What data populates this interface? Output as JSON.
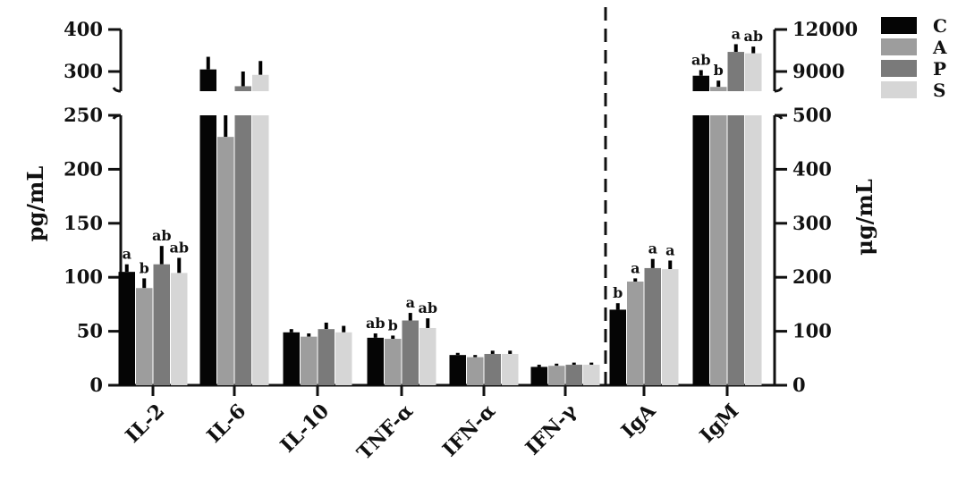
{
  "chart_data": {
    "type": "bar",
    "categories": [
      "IL-2",
      "IL-6",
      "IL-10",
      "TNF-α",
      "IFN-α",
      "IFN-γ",
      "IgA",
      "IgM"
    ],
    "series": [
      {
        "name": "C",
        "color": "#050505",
        "values": [
          105,
          305,
          49,
          44,
          28,
          17,
          140,
          8700
        ],
        "errors": [
          7,
          30,
          3,
          4,
          2,
          2,
          12,
          400
        ],
        "letters": [
          "a",
          "",
          "",
          "ab",
          "",
          "",
          "b",
          "ab"
        ]
      },
      {
        "name": "A",
        "color": "#9d9d9d",
        "values": [
          90,
          230,
          45,
          43,
          26,
          18,
          192,
          7900
        ],
        "errors": [
          9,
          20,
          3,
          3,
          2,
          2,
          6,
          450
        ],
        "letters": [
          "b",
          "",
          "",
          "b",
          "",
          "",
          "a",
          "b"
        ]
      },
      {
        "name": "P",
        "color": "#7a7a7a",
        "values": [
          112,
          265,
          52,
          60,
          29,
          19,
          217,
          10400
        ],
        "errors": [
          17,
          35,
          6,
          7,
          3,
          2,
          17,
          550
        ],
        "letters": [
          "ab",
          "",
          "",
          "a",
          "",
          "",
          "a",
          "a"
        ]
      },
      {
        "name": "S",
        "color": "#d6d6d6",
        "values": [
          104,
          292,
          49,
          53,
          29,
          19,
          215,
          10300
        ],
        "errors": [
          14,
          33,
          6,
          9,
          3,
          2,
          16,
          480
        ],
        "letters": [
          "ab",
          "",
          "",
          "ab",
          "",
          "",
          "a",
          "ab"
        ]
      }
    ],
    "left_axis": {
      "label": "pg/mL",
      "lower_ticks": [
        "0",
        "50",
        "100",
        "150",
        "200",
        "250"
      ],
      "upper_ticks": [
        "300",
        "400"
      ],
      "lower_range": [
        0,
        250
      ],
      "upper_range": [
        250,
        400
      ]
    },
    "right_axis": {
      "label": "μg/mL",
      "lower_ticks": [
        "0",
        "100",
        "200",
        "300",
        "400",
        "500"
      ],
      "upper_ticks": [
        "9000",
        "12000"
      ],
      "lower_range": [
        0,
        500
      ],
      "upper_range": [
        6500,
        12000
      ]
    },
    "right_axis_categories": [
      "IgA",
      "IgM"
    ],
    "broken_axis": true,
    "legend_position": "top-right",
    "legend": [
      "C",
      "A",
      "P",
      "S"
    ]
  }
}
